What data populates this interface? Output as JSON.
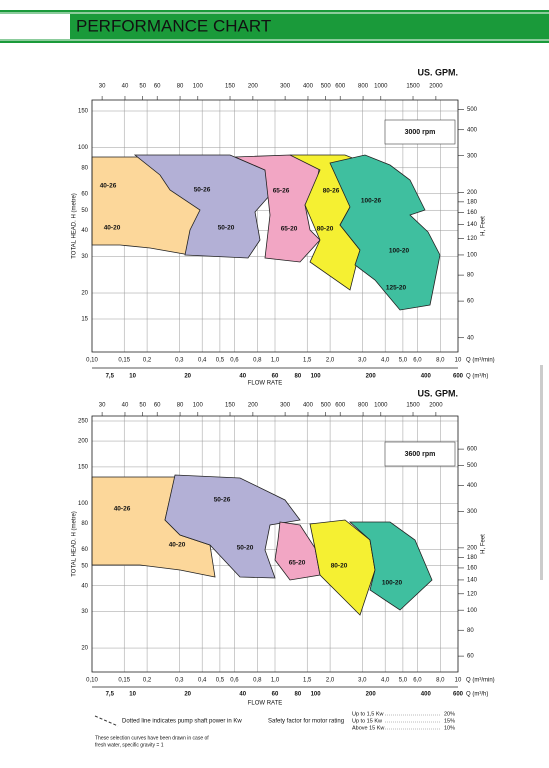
{
  "header": {
    "title": "PERFORMANCE CHART"
  },
  "charts": [
    {
      "gpm_label": "US. GPM.",
      "gpm_ticks": [
        30,
        40,
        50,
        60,
        80,
        100,
        150,
        200,
        300,
        400,
        500,
        600,
        800,
        1000,
        1500,
        2000
      ],
      "speed": "3000 rpm",
      "head_ticks": [
        150,
        100,
        80,
        60,
        50,
        40,
        30,
        20,
        15
      ],
      "feet_ticks": [
        500,
        400,
        300,
        200,
        180,
        160,
        140,
        120,
        100,
        80,
        60,
        40
      ],
      "q_min_ticks": [
        {
          "value": 0.1,
          "label": "0,10"
        },
        {
          "value": 0.15,
          "label": "0,15"
        },
        {
          "value": 0.2,
          "label": "0,2"
        },
        {
          "value": 0.3,
          "label": "0,3"
        },
        {
          "value": 0.4,
          "label": "0,4"
        },
        {
          "value": 0.5,
          "label": "0,5"
        },
        {
          "value": 0.6,
          "label": "0,6"
        },
        {
          "value": 0.8,
          "label": "0,8"
        },
        {
          "value": 1,
          "label": "1,0"
        },
        {
          "value": 1.5,
          "label": "1,5"
        },
        {
          "value": 2,
          "label": "2,0"
        },
        {
          "value": 3,
          "label": "3,0"
        },
        {
          "value": 4,
          "label": "4,0"
        },
        {
          "value": 5,
          "label": "5,0"
        },
        {
          "value": 6,
          "label": "6,0"
        },
        {
          "value": 8,
          "label": "8,0"
        },
        10
      ],
      "q_min_label": "Q (m³/min)",
      "q_h_ticks": [
        {
          "value": 7.5,
          "label": "7,5"
        },
        10,
        20,
        40,
        60,
        80,
        100,
        200,
        400,
        600
      ],
      "q_h_label": "Q (m³/h)",
      "y_label": "TOTAL HEAD. H (metre)",
      "y2_label": "H, Feet",
      "x_label": "FLOW RATE",
      "pumps": [
        "40-26",
        "40-20",
        "50-26",
        "50-20",
        "65-26",
        "65-20",
        "80-26",
        "80-20",
        "100-26",
        "100-20",
        "125-20"
      ]
    },
    {
      "gpm_label": "US. GPM.",
      "gpm_ticks": [
        30,
        40,
        50,
        60,
        80,
        100,
        150,
        200,
        300,
        400,
        500,
        600,
        800,
        1000,
        1500,
        2000
      ],
      "speed": "3600 rpm",
      "head_ticks": [
        250,
        200,
        150,
        100,
        80,
        60,
        50,
        40,
        30,
        20
      ],
      "feet_ticks": [
        600,
        500,
        400,
        300,
        200,
        180,
        160,
        140,
        120,
        100,
        80,
        60
      ],
      "q_min_ticks": [
        {
          "value": 0.1,
          "label": "0,10"
        },
        {
          "value": 0.15,
          "label": "0,15"
        },
        {
          "value": 0.2,
          "label": "0,2"
        },
        {
          "value": 0.3,
          "label": "0,3"
        },
        {
          "value": 0.4,
          "label": "0,4"
        },
        {
          "value": 0.5,
          "label": "0,5"
        },
        {
          "value": 0.6,
          "label": "0,6"
        },
        {
          "value": 0.8,
          "label": "0,8"
        },
        {
          "value": 1,
          "label": "1,0"
        },
        {
          "value": 1.5,
          "label": "1,5"
        },
        {
          "value": 2,
          "label": "2,0"
        },
        {
          "value": 3,
          "label": "3,0"
        },
        {
          "value": 4,
          "label": "4,0"
        },
        {
          "value": 5,
          "label": "5,0"
        },
        {
          "value": 6,
          "label": "6,0"
        },
        {
          "value": 8,
          "label": "8,0"
        },
        10
      ],
      "q_min_label": "Q (m³/min)",
      "q_h_ticks": [
        {
          "value": 7.5,
          "label": "7,5"
        },
        10,
        20,
        40,
        60,
        80,
        100,
        200,
        400,
        600
      ],
      "q_h_label": "Q (m³/h)",
      "y_label": "TOTAL HEAD. H (metre)",
      "y2_label": "H, Feet",
      "x_label": "FLOW RATE",
      "pumps": [
        "40-26",
        "40-20",
        "50-26",
        "50-20",
        "65-20",
        "80-20",
        "100-20"
      ]
    }
  ],
  "footer": {
    "dotted_note": "Dotted line indicates pump shaft power in Kw",
    "water_note_1": "These selection curves have been drawn in case of",
    "water_note_2": "fresh water, specific gravity = 1",
    "safety_label": "Safety factor for motor rating",
    "safety_rows": [
      [
        "Up to 1,5 Kw",
        "20%"
      ],
      [
        "Up to 15 Kw",
        "15%"
      ],
      [
        "Above 15 Kw",
        "10%"
      ]
    ]
  }
}
